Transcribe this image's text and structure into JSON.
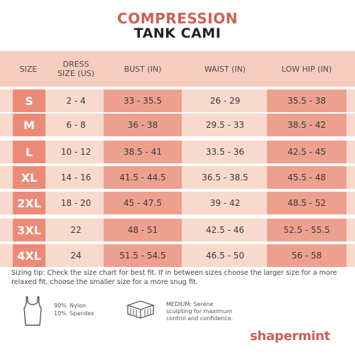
{
  "title": {
    "line1": "COMPRESSION",
    "line2": "TANK CAMI"
  },
  "headers": {
    "size": "SIZE",
    "dress_line1": "DRESS",
    "dress_line2": "SIZE (US)",
    "bust": "BUST (IN)",
    "waist": "WAIST (IN)",
    "hip": "LOW HIP (IN)"
  },
  "rows": [
    {
      "size": "S",
      "dress": "2 - 4",
      "bust": "33 - 35.5",
      "waist": "26 - 29",
      "hip": "35.5 - 38"
    },
    {
      "size": "M",
      "dress": "6 - 8",
      "bust": "36 - 38",
      "waist": "29.5 - 33",
      "hip": "38.5 - 42"
    },
    {
      "size": "L",
      "dress": "10 - 12",
      "bust": "38.5 - 41",
      "waist": "33.5 - 36",
      "hip": "42.5 - 45"
    },
    {
      "size": "XL",
      "dress": "14 - 16",
      "bust": "41.5 - 44.5",
      "waist": "36.5 - 38.5",
      "hip": "45.5 - 48"
    },
    {
      "size": "2XL",
      "dress": "18 - 20",
      "bust": "45 - 47.5",
      "waist": "39 - 42",
      "hip": "48.5 - 52"
    },
    {
      "size": "3XL",
      "dress": "22",
      "bust": "48 - 51",
      "waist": "42.5 - 46",
      "hip": "52.5 - 55.5"
    },
    {
      "size": "4XL",
      "dress": "24",
      "bust": "51.5 - 54.5",
      "waist": "46.5 - 50",
      "hip": "56 - 58"
    }
  ],
  "tip": "Sizing tip: Check the size chart for best fit. If in between sizes choose the larger size for a more relaxed fit, choose the smaller size for a more snug fit.",
  "materials": {
    "pct1": "90%",
    "name1": "Nylon",
    "pct2": "10%",
    "name2": "Spandex"
  },
  "compression": {
    "line1": "MEDIUM: Serene",
    "line2": "sculpting for maximum",
    "line3": "control and confidence."
  },
  "brand": "shapermint",
  "colors": {
    "accent": "#cf5f55",
    "band": "#f8d9cd",
    "size_cell": "#ec8a78",
    "highlight_cell": "#eea08f"
  }
}
